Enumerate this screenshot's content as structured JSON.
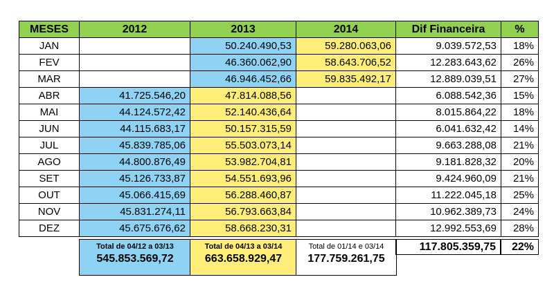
{
  "headers": [
    "MESES",
    "2012",
    "2013",
    "2014",
    "Dif Financeira",
    "%"
  ],
  "rows": [
    {
      "mes": "JAN",
      "y2012": "",
      "y2013": "50.240.490,53",
      "y2014": "59.280.063,06",
      "dif": "9.039.572,53",
      "pct": "18%"
    },
    {
      "mes": "FEV",
      "y2012": "",
      "y2013": "46.360.062,90",
      "y2014": "58.643.706,52",
      "dif": "12.283.643,62",
      "pct": "26%"
    },
    {
      "mes": "MAR",
      "y2012": "",
      "y2013": "46.946.452,66",
      "y2014": "59.835.492,17",
      "dif": "12.889.039,51",
      "pct": "27%"
    },
    {
      "mes": "ABR",
      "y2012": "41.725.546,20",
      "y2013": "47.814.088,56",
      "y2014": "",
      "dif": "6.088.542,36",
      "pct": "15%"
    },
    {
      "mes": "MAI",
      "y2012": "44.124.572,42",
      "y2013": "52.140.436,64",
      "y2014": "",
      "dif": "8.015.864,22",
      "pct": "18%"
    },
    {
      "mes": "JUN",
      "y2012": "44.115.683,17",
      "y2013": "50.157.315,59",
      "y2014": "",
      "dif": "6.041.632,42",
      "pct": "14%"
    },
    {
      "mes": "JUL",
      "y2012": "45.839.785,06",
      "y2013": "55.503.073,14",
      "y2014": "",
      "dif": "9.663.288,08",
      "pct": "21%"
    },
    {
      "mes": "AGO",
      "y2012": "44.800.876,49",
      "y2013": "53.982.704,81",
      "y2014": "",
      "dif": "9.181.828,32",
      "pct": "20%"
    },
    {
      "mes": "SET",
      "y2012": "45.126.733,87",
      "y2013": "54.551.693,96",
      "y2014": "",
      "dif": "9.424.960,09",
      "pct": "21%"
    },
    {
      "mes": "OUT",
      "y2012": "45.066.415,69",
      "y2013": "56.288.460,87",
      "y2014": "",
      "dif": "11.222.045,18",
      "pct": "25%"
    },
    {
      "mes": "NOV",
      "y2012": "45.831.274,11",
      "y2013": "56.793.663,84",
      "y2014": "",
      "dif": "10.962.389,73",
      "pct": "24%"
    },
    {
      "mes": "DEZ",
      "y2012": "45.675.676,62",
      "y2013": "58.668.230,31",
      "y2014": "",
      "dif": "12.992.553,69",
      "pct": "28%"
    }
  ],
  "totals": {
    "t2012_label": "Total de 04/12 a 03/13",
    "t2012_value": "545.853.569,72",
    "t2013_label": "Total de 04/13 a 03/14",
    "t2013_value": "663.658.929,47",
    "t2014_label": "Total de 01/14 e 03/14",
    "t2014_value": "177.759.261,75",
    "dif_total": "117.805.359,75",
    "pct_total": "22%"
  },
  "colors": {
    "header": "#92d050",
    "blue": "#8ed3f4",
    "yellow": "#ffef7a"
  }
}
